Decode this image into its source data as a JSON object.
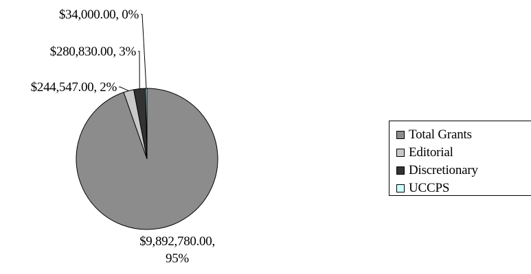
{
  "chart_data": {
    "type": "pie",
    "categories": [
      "Total Grants",
      "Editorial",
      "Discretionary",
      "UCCPS"
    ],
    "values": [
      9892780.0,
      244547.0,
      280830.0,
      34000.0
    ],
    "percent_labels": [
      "95%",
      "2%",
      "3%",
      "0%"
    ],
    "data_labels": [
      "$9,892,780.00, 95%",
      "$244,547.00, 2%",
      "$280,830.00, 3%",
      "$34,000.00, 0%"
    ],
    "colors": [
      "#8c8c8c",
      "#c9c9c9",
      "#333333",
      "#ccffff"
    ],
    "legend": {
      "position": "right",
      "items": [
        "Total Grants",
        "Editorial",
        "Discretionary",
        "UCCPS"
      ]
    }
  }
}
